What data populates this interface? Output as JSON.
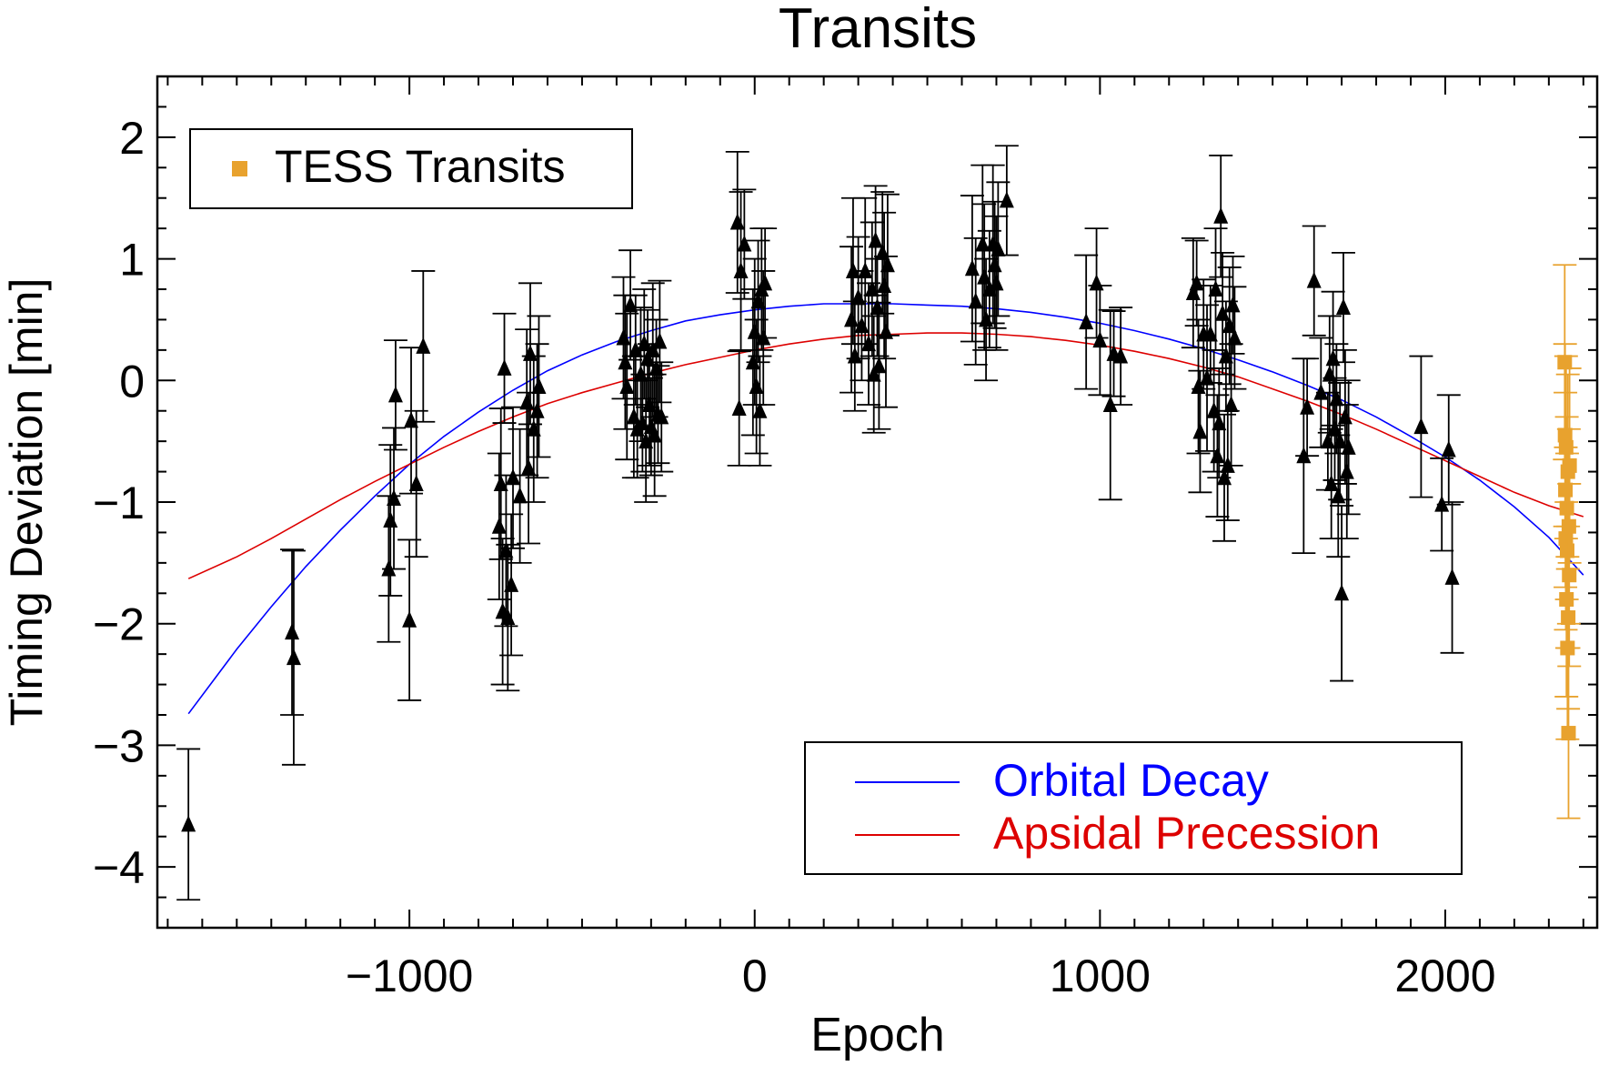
{
  "chart_data": {
    "type": "scatter",
    "title": "Transits",
    "xlabel": "Epoch",
    "ylabel": "Timing Deviation [min]",
    "xlim": [
      -1730,
      2440
    ],
    "ylim": [
      -4.5,
      2.5
    ],
    "x_ticks": [
      -1000,
      0,
      1000,
      2000
    ],
    "x_tick_labels": [
      "−1000",
      "0",
      "1000",
      "2000"
    ],
    "y_ticks": [
      -4,
      -3,
      -2,
      -1,
      0,
      1,
      2
    ],
    "y_tick_labels": [
      "−4",
      "−3",
      "−2",
      "−1",
      "0",
      "1",
      "2"
    ],
    "x_minor_step": 100,
    "y_minor_step": 0.25,
    "grid": false,
    "legend_top_left": {
      "placement": "top-left",
      "entries": [
        {
          "label": "TESS Transits",
          "color": "#E8A22E",
          "marker": "square"
        }
      ]
    },
    "legend_bottom_right": {
      "placement": "bottom-right",
      "entries": [
        {
          "label": "Orbital Decay",
          "color": "#0000FF",
          "marker": "line"
        },
        {
          "label": "Apsidal Precession",
          "color": "#DD0000",
          "marker": "line"
        }
      ]
    },
    "series": [
      {
        "name": "Orbital Decay",
        "kind": "line",
        "color": "#0000FF",
        "x": [
          -1640,
          -1500,
          -1400,
          -1300,
          -1200,
          -1100,
          -1000,
          -900,
          -800,
          -700,
          -600,
          -500,
          -400,
          -300,
          -200,
          -100,
          0,
          100,
          200,
          300,
          400,
          500,
          600,
          700,
          800,
          900,
          1000,
          1100,
          1200,
          1300,
          1400,
          1500,
          1600,
          1700,
          1800,
          1900,
          2000,
          2100,
          2200,
          2300,
          2400
        ],
        "y": [
          -2.74,
          -2.21,
          -1.86,
          -1.53,
          -1.23,
          -0.95,
          -0.69,
          -0.46,
          -0.26,
          -0.08,
          0.08,
          0.21,
          0.32,
          0.41,
          0.49,
          0.54,
          0.58,
          0.61,
          0.63,
          0.63,
          0.63,
          0.62,
          0.61,
          0.59,
          0.56,
          0.52,
          0.47,
          0.41,
          0.34,
          0.26,
          0.17,
          0.07,
          -0.04,
          -0.16,
          -0.3,
          -0.46,
          -0.63,
          -0.82,
          -1.04,
          -1.29,
          -1.6
        ]
      },
      {
        "name": "Apsidal Precession",
        "kind": "line",
        "color": "#DD0000",
        "x": [
          -1640,
          -1500,
          -1400,
          -1300,
          -1200,
          -1100,
          -1000,
          -900,
          -800,
          -700,
          -600,
          -500,
          -400,
          -300,
          -200,
          -100,
          0,
          100,
          200,
          300,
          400,
          500,
          600,
          700,
          800,
          900,
          1000,
          1100,
          1200,
          1300,
          1400,
          1500,
          1600,
          1700,
          1800,
          1900,
          2000,
          2100,
          2200,
          2300,
          2400
        ],
        "y": [
          -1.63,
          -1.45,
          -1.3,
          -1.14,
          -0.98,
          -0.83,
          -0.69,
          -0.55,
          -0.42,
          -0.3,
          -0.19,
          -0.1,
          -0.02,
          0.06,
          0.13,
          0.19,
          0.25,
          0.3,
          0.34,
          0.37,
          0.38,
          0.39,
          0.39,
          0.38,
          0.36,
          0.33,
          0.29,
          0.24,
          0.18,
          0.11,
          0.03,
          -0.07,
          -0.17,
          -0.28,
          -0.4,
          -0.53,
          -0.66,
          -0.79,
          -0.92,
          -1.03,
          -1.12
        ]
      },
      {
        "name": "Transits",
        "kind": "errorbar",
        "marker": "triangle",
        "color": "#000000",
        "points": [
          [
            -1640,
            -3.65,
            0.62
          ],
          [
            -1340,
            -2.07,
            0.68
          ],
          [
            -1335,
            -2.28,
            0.88
          ],
          [
            -1060,
            -1.55,
            0.6
          ],
          [
            -1055,
            -1.15,
            0.62
          ],
          [
            -1045,
            -0.97,
            0.58
          ],
          [
            -1040,
            -0.12,
            0.45
          ],
          [
            -1000,
            -1.97,
            0.66
          ],
          [
            -995,
            -0.33,
            0.6
          ],
          [
            -980,
            -0.85,
            0.6
          ],
          [
            -960,
            0.28,
            0.62
          ],
          [
            -740,
            -1.2,
            0.6
          ],
          [
            -735,
            -0.85,
            0.62
          ],
          [
            -730,
            -1.9,
            0.6
          ],
          [
            -725,
            0.1,
            0.45
          ],
          [
            -720,
            -1.4,
            0.62
          ],
          [
            -715,
            -1.95,
            0.6
          ],
          [
            -705,
            -1.68,
            0.58
          ],
          [
            -700,
            -0.8,
            0.58
          ],
          [
            -680,
            -0.95,
            0.55
          ],
          [
            -660,
            -0.18,
            0.6
          ],
          [
            -655,
            -0.72,
            0.62
          ],
          [
            -650,
            0.22,
            0.58
          ],
          [
            -640,
            -0.4,
            0.6
          ],
          [
            -630,
            -0.25,
            0.55
          ],
          [
            -625,
            -0.05,
            0.58
          ],
          [
            -380,
            0.35,
            0.5
          ],
          [
            -375,
            0.15,
            0.55
          ],
          [
            -370,
            -0.05,
            0.6
          ],
          [
            -360,
            0.62,
            0.45
          ],
          [
            -350,
            -0.3,
            0.5
          ],
          [
            -345,
            0.25,
            0.45
          ],
          [
            -340,
            -0.4,
            0.4
          ],
          [
            -330,
            0.05,
            0.55
          ],
          [
            -325,
            -0.35,
            0.4
          ],
          [
            -320,
            0.3,
            0.45
          ],
          [
            -315,
            -0.5,
            0.5
          ],
          [
            -310,
            0.18,
            0.4
          ],
          [
            -305,
            -0.2,
            0.5
          ],
          [
            -300,
            -0.38,
            0.4
          ],
          [
            -295,
            0.25,
            0.55
          ],
          [
            -290,
            -0.45,
            0.5
          ],
          [
            -285,
            0.1,
            0.4
          ],
          [
            -280,
            -0.28,
            0.4
          ],
          [
            -275,
            0.32,
            0.5
          ],
          [
            -270,
            -0.3,
            0.45
          ],
          [
            -50,
            1.3,
            0.58
          ],
          [
            -45,
            -0.23,
            0.47
          ],
          [
            -40,
            0.9,
            0.65
          ],
          [
            -30,
            1.12,
            0.45
          ],
          [
            -5,
            0.15,
            0.6
          ],
          [
            0,
            0.4,
            0.6
          ],
          [
            5,
            -0.05,
            0.55
          ],
          [
            10,
            0.65,
            0.5
          ],
          [
            15,
            -0.25,
            0.45
          ],
          [
            20,
            0.75,
            0.5
          ],
          [
            25,
            0.35,
            0.55
          ],
          [
            30,
            0.8,
            0.45
          ],
          [
            280,
            0.5,
            0.6
          ],
          [
            285,
            0.9,
            0.6
          ],
          [
            290,
            0.2,
            0.45
          ],
          [
            300,
            0.68,
            0.5
          ],
          [
            310,
            0.45,
            0.45
          ],
          [
            320,
            0.9,
            0.6
          ],
          [
            330,
            0.3,
            0.5
          ],
          [
            340,
            0.75,
            0.55
          ],
          [
            345,
            0.05,
            0.48
          ],
          [
            350,
            1.15,
            0.45
          ],
          [
            355,
            0.6,
            0.4
          ],
          [
            360,
            0.12,
            0.52
          ],
          [
            370,
            1.05,
            0.5
          ],
          [
            375,
            0.78,
            0.6
          ],
          [
            380,
            0.4,
            0.62
          ],
          [
            385,
            0.95,
            0.58
          ],
          [
            630,
            0.92,
            0.6
          ],
          [
            640,
            0.65,
            0.52
          ],
          [
            660,
            1.12,
            0.65
          ],
          [
            665,
            0.85,
            0.6
          ],
          [
            670,
            0.5,
            0.5
          ],
          [
            680,
            0.75,
            0.48
          ],
          [
            690,
            1.12,
            0.65
          ],
          [
            695,
            0.95,
            0.52
          ],
          [
            700,
            0.8,
            0.55
          ],
          [
            705,
            1.08,
            0.55
          ],
          [
            730,
            1.48,
            0.45
          ],
          [
            960,
            0.48,
            0.55
          ],
          [
            990,
            0.8,
            0.45
          ],
          [
            1000,
            0.33,
            0.45
          ],
          [
            1030,
            -0.2,
            0.78
          ],
          [
            1040,
            0.22,
            0.35
          ],
          [
            1060,
            0.2,
            0.4
          ],
          [
            1270,
            0.72,
            0.45
          ],
          [
            1280,
            0.8,
            0.35
          ],
          [
            1285,
            -0.05,
            0.55
          ],
          [
            1290,
            -0.42,
            0.5
          ],
          [
            1300,
            0.38,
            0.45
          ],
          [
            1310,
            0.02,
            0.6
          ],
          [
            1320,
            0.38,
            0.4
          ],
          [
            1330,
            -0.25,
            0.5
          ],
          [
            1335,
            0.75,
            0.5
          ],
          [
            1340,
            -0.62,
            0.5
          ],
          [
            1345,
            -0.35,
            0.45
          ],
          [
            1350,
            1.35,
            0.5
          ],
          [
            1355,
            0.55,
            0.5
          ],
          [
            1360,
            -0.8,
            0.52
          ],
          [
            1365,
            0.2,
            0.45
          ],
          [
            1370,
            -0.7,
            0.45
          ],
          [
            1375,
            0.45,
            0.48
          ],
          [
            1380,
            -0.2,
            0.5
          ],
          [
            1385,
            0.62,
            0.4
          ],
          [
            1390,
            0.35,
            0.42
          ],
          [
            1590,
            -0.62,
            0.8
          ],
          [
            1600,
            -0.22,
            0.4
          ],
          [
            1620,
            0.82,
            0.45
          ],
          [
            1640,
            -0.1,
            0.45
          ],
          [
            1660,
            -0.5,
            0.4
          ],
          [
            1665,
            0.05,
            0.48
          ],
          [
            1670,
            -0.85,
            0.45
          ],
          [
            1675,
            0.18,
            0.55
          ],
          [
            1680,
            -0.4,
            0.42
          ],
          [
            1685,
            -0.15,
            0.45
          ],
          [
            1690,
            -0.95,
            0.5
          ],
          [
            1695,
            -0.5,
            0.48
          ],
          [
            1700,
            -1.75,
            0.72
          ],
          [
            1705,
            0.6,
            0.45
          ],
          [
            1710,
            -0.3,
            0.55
          ],
          [
            1715,
            -0.75,
            0.55
          ],
          [
            1720,
            -0.55,
            0.55
          ],
          [
            1930,
            -0.38,
            0.58
          ],
          [
            1990,
            -1.02,
            0.38
          ],
          [
            2010,
            -0.57,
            0.45
          ],
          [
            2020,
            -1.62,
            0.62
          ]
        ]
      },
      {
        "name": "TESS Transits",
        "kind": "errorbar",
        "marker": "square",
        "color": "#E8A22E",
        "points": [
          [
            2346,
            0.15,
            0.8
          ],
          [
            2347,
            -0.45,
            0.75
          ],
          [
            2348,
            -0.9,
            0.8
          ],
          [
            2349,
            -1.3,
            0.75
          ],
          [
            2350,
            -0.55,
            0.75
          ],
          [
            2351,
            -1.8,
            0.8
          ],
          [
            2352,
            -1.05,
            0.75
          ],
          [
            2353,
            -1.4,
            0.8
          ],
          [
            2354,
            -2.2,
            0.75
          ],
          [
            2355,
            -0.75,
            0.8
          ],
          [
            2356,
            -1.95,
            0.75
          ],
          [
            2357,
            -2.9,
            0.7
          ],
          [
            2358,
            -1.2,
            0.8
          ],
          [
            2359,
            -1.6,
            0.75
          ],
          [
            2360,
            -0.7,
            0.8
          ]
        ]
      }
    ]
  }
}
